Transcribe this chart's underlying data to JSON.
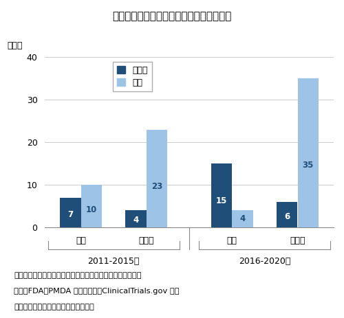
{
  "title": "図５　ピボタル試験の日本地域組入れ状況",
  "ylabel": "品目数",
  "ylim": [
    0,
    40
  ],
  "yticks": [
    0,
    10,
    20,
    30,
    40
  ],
  "groups": [
    "2011-2015年",
    "2016-2020年"
  ],
  "subgroups": [
    "承認",
    "未承認",
    "承認",
    "未承認"
  ],
  "dark_blue_values": [
    7,
    4,
    15,
    6
  ],
  "light_blue_values": [
    10,
    23,
    4,
    35
  ],
  "dark_blue_color": "#1F4E79",
  "light_blue_color": "#9DC3E6",
  "bar_width": 0.32,
  "legend_labels": [
    "組入れ",
    "なし"
  ],
  "note_line1": "注：２か国以上を組入れている試験を国際共同治験とした。",
  "note_line2": "出所：FDA、PMDA の公開情報、ClinicalTrials.gov をも",
  "note_line3": "　　とに医薬産業政策研究所にて作成",
  "background_color": "#FFFFFF",
  "grid_color": "#CCCCCC"
}
